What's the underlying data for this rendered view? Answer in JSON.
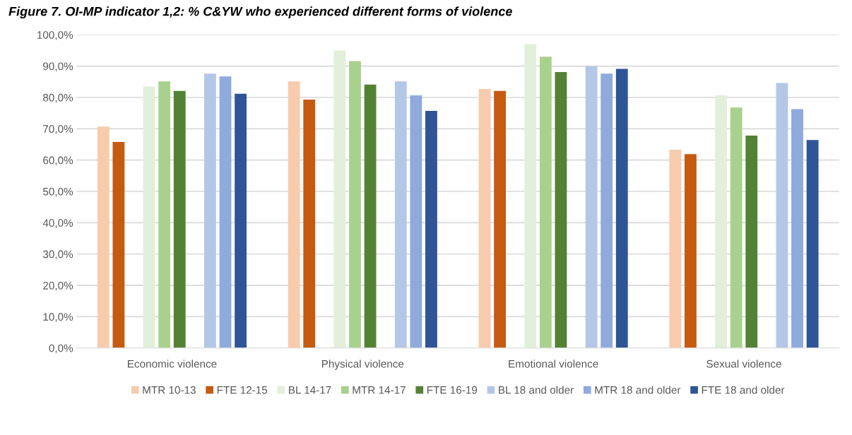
{
  "chart_data": {
    "type": "bar",
    "title": "Figure 7. OI-MP indicator 1,2: % C&YW who experienced different forms of violence",
    "categories": [
      "Economic violence",
      "Physical violence",
      "Emotional violence",
      "Sexual violence"
    ],
    "series": [
      {
        "name": "MTR 10-13",
        "color": "#f8cbad",
        "values": [
          70.7,
          85.1,
          82.7,
          63.3
        ]
      },
      {
        "name": "FTE 12-15",
        "color": "#c55a11",
        "values": [
          65.8,
          79.3,
          82.1,
          61.9
        ]
      },
      {
        "values": [
          null,
          null,
          null,
          null
        ]
      },
      {
        "name": "BL 14-17",
        "color": "#e2efda",
        "values": [
          83.5,
          95.0,
          97.0,
          80.7
        ]
      },
      {
        "name": "MTR 14-17",
        "color": "#a9d18e",
        "values": [
          85.1,
          91.6,
          93.0,
          76.8
        ]
      },
      {
        "name": "FTE 16-19",
        "color": "#548235",
        "values": [
          82.1,
          84.1,
          88.1,
          67.8
        ]
      },
      {
        "values": [
          null,
          null,
          null,
          null
        ]
      },
      {
        "name": "BL 18 and older",
        "color": "#b4c7e7",
        "values": [
          87.6,
          85.1,
          90.0,
          84.6
        ]
      },
      {
        "name": "MTR 18 and older",
        "color": "#8faadc",
        "values": [
          86.7,
          80.7,
          87.6,
          76.3
        ]
      },
      {
        "name": "FTE 18 and older",
        "color": "#2f5597",
        "values": [
          81.2,
          75.7,
          89.1,
          66.4
        ]
      }
    ],
    "ylim": [
      0,
      100
    ],
    "yticks": [
      {
        "value": 0,
        "label": "0,0%"
      },
      {
        "value": 10,
        "label": "10,0%"
      },
      {
        "value": 20,
        "label": "20,0%"
      },
      {
        "value": 30,
        "label": "30,0%"
      },
      {
        "value": 40,
        "label": "40,0%"
      },
      {
        "value": 50,
        "label": "50,0%"
      },
      {
        "value": 60,
        "label": "60,0%"
      },
      {
        "value": 70,
        "label": "70,0%"
      },
      {
        "value": 80,
        "label": "80,0%"
      },
      {
        "value": 90,
        "label": "90,0%"
      },
      {
        "value": 100,
        "label": "100,0%"
      }
    ],
    "grid": "y",
    "legend": "bottom"
  }
}
